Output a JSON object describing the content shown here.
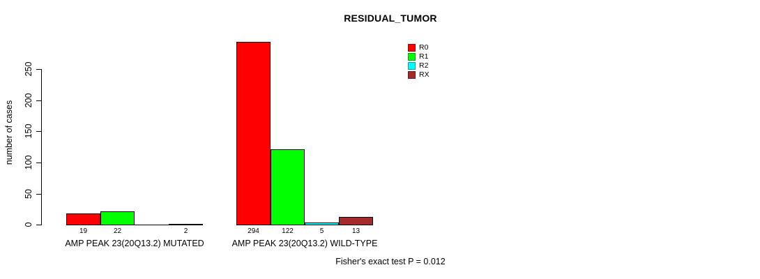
{
  "chart_data": {
    "type": "bar",
    "title": "RESIDUAL_TUMOR",
    "xlabel": "",
    "ylabel": "number of cases",
    "ylim": [
      0,
      250
    ],
    "yticks": [
      0,
      50,
      100,
      150,
      200,
      250
    ],
    "grid": false,
    "legend_position": "top-right",
    "categories": [
      "AMP PEAK 23(20Q13.2) MUTATED",
      "AMP PEAK 23(20Q13.2) WILD-TYPE"
    ],
    "series": [
      {
        "name": "R0",
        "color": "#FF0000",
        "values": [
          19,
          294
        ],
        "labels": [
          "19",
          "294"
        ]
      },
      {
        "name": "R1",
        "color": "#00FF00",
        "values": [
          22,
          122
        ],
        "labels": [
          "22",
          "122"
        ]
      },
      {
        "name": "R2",
        "color": "#00FFFF",
        "values": [
          0,
          5
        ],
        "labels": [
          "",
          "5"
        ]
      },
      {
        "name": "RX",
        "color": "#A52A2A",
        "values": [
          2,
          13
        ],
        "labels": [
          "2",
          "13"
        ]
      }
    ],
    "annotation": "Fisher's exact test P = 0.012"
  }
}
